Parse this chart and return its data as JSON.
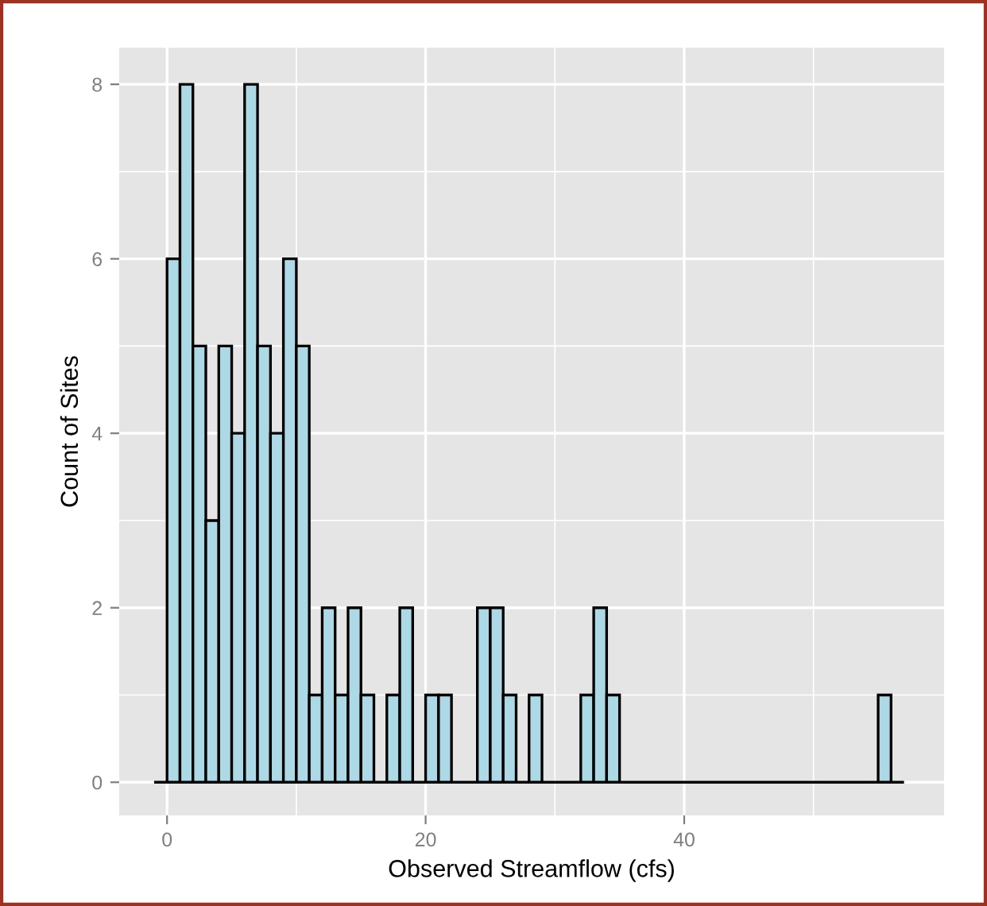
{
  "chart_data": {
    "type": "histogram",
    "xlabel": "Observed Streamflow (cfs)",
    "ylabel": "Count of Sites",
    "bins": [
      -1,
      0,
      1,
      2,
      3,
      4,
      5,
      6,
      7,
      8,
      9,
      10,
      11,
      12,
      13,
      14,
      15,
      16,
      17,
      18,
      19,
      20,
      21,
      22,
      23,
      24,
      25,
      26,
      27,
      28,
      29,
      30,
      31,
      32,
      33,
      34,
      35,
      36,
      37,
      38,
      39,
      40,
      41,
      42,
      43,
      44,
      45,
      46,
      47,
      48,
      49,
      50,
      51,
      52,
      53,
      54,
      55,
      56,
      57
    ],
    "values": [
      0,
      6,
      8,
      5,
      3,
      5,
      4,
      8,
      5,
      4,
      6,
      5,
      1,
      2,
      1,
      2,
      1,
      0,
      1,
      2,
      0,
      1,
      1,
      0,
      0,
      2,
      2,
      1,
      0,
      1,
      0,
      0,
      0,
      1,
      2,
      1,
      0,
      0,
      0,
      0,
      0,
      0,
      0,
      0,
      0,
      0,
      0,
      0,
      0,
      0,
      0,
      0,
      0,
      0,
      0,
      0,
      1,
      0
    ],
    "color": "#add8e6",
    "xlim": [
      -3.7,
      60.1
    ],
    "ylim": [
      -0.38,
      8.42
    ],
    "xticks": [
      0,
      20,
      40
    ],
    "yticks": [
      0,
      2,
      4,
      6,
      8
    ],
    "grid": true
  }
}
